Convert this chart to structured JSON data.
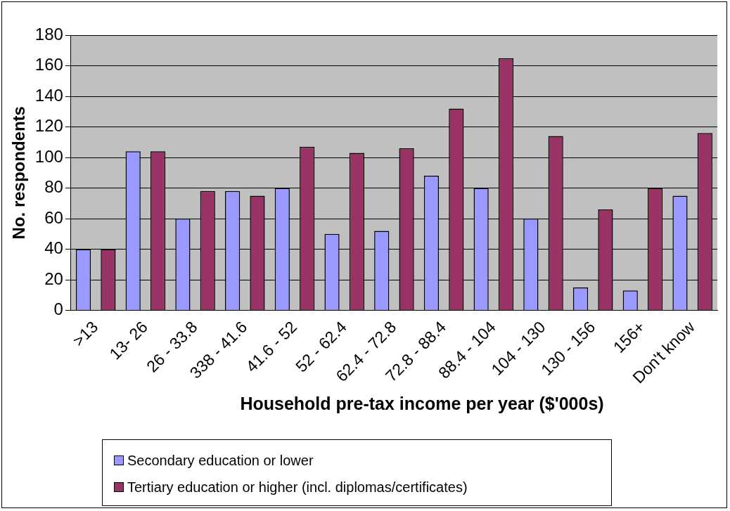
{
  "chart_data": {
    "type": "bar",
    "xlabel": "Household pre-tax income per year ($'000s)",
    "ylabel": "No. respondents",
    "categories": [
      ">13",
      "13- 26",
      "26 - 33.8",
      "338 - 41.6",
      "41.6 - 52",
      "52 - 62.4",
      "62.4 - 72.8",
      "72.8 - 88.4",
      "88.4 - 104",
      "104 - 130",
      "130 - 156",
      "156+",
      "Don't know"
    ],
    "series": [
      {
        "name": "Secondary education or lower",
        "color": "#9999ff",
        "values": [
          40,
          104,
          60,
          78,
          80,
          50,
          52,
          88,
          80,
          60,
          15,
          13,
          75
        ]
      },
      {
        "name": "Tertiary education or higher (incl. diplomas/certificates)",
        "color": "#993366",
        "values": [
          40,
          104,
          78,
          75,
          107,
          103,
          106,
          132,
          165,
          114,
          66,
          80,
          116
        ]
      }
    ],
    "ylim": [
      0,
      180
    ],
    "yticks": [
      0,
      20,
      40,
      60,
      80,
      100,
      120,
      140,
      160,
      180
    ],
    "grid": "y",
    "legend": "bottom"
  }
}
